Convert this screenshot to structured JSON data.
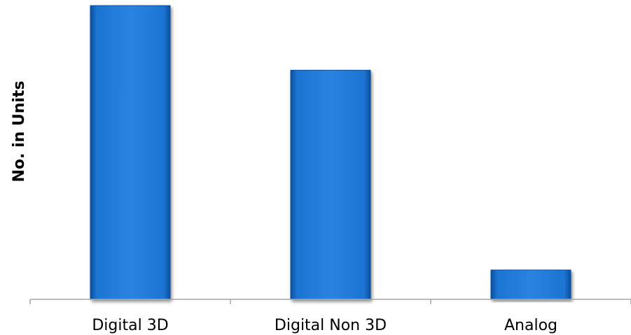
{
  "chart_data": {
    "type": "bar",
    "title": "",
    "xlabel": "",
    "ylabel": "No. in Units",
    "categories": [
      "Digital 3D",
      "Digital Non 3D",
      "Analog"
    ],
    "values": [
      100,
      78,
      10
    ],
    "ylim": [
      0,
      100
    ],
    "grid": false,
    "legend": "none",
    "y_tick_labels_shown": false
  },
  "colors": {
    "bar": "#1c74d2",
    "bar_dark": "#0b4f9f",
    "bar_light": "#3b8fe6",
    "axis": "#a6a6a6"
  }
}
